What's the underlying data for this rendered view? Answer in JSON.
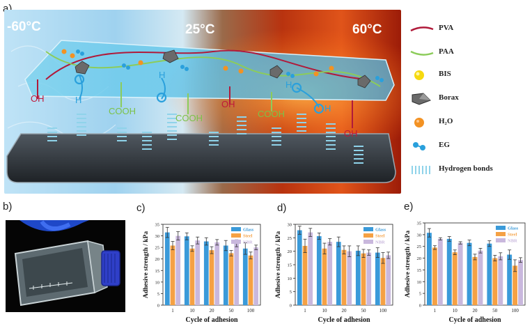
{
  "panels": {
    "a": "a)",
    "b": "b)",
    "c": "c)",
    "d": "d)",
    "e": "e)"
  },
  "schematic": {
    "temp_cold": "-60°C",
    "temp_room": "25°C",
    "temp_hot": "60°C",
    "groups": {
      "oh": "OH",
      "cooh": "COOH",
      "h": "H",
      "o": "O"
    }
  },
  "legend": [
    {
      "label": "PVA",
      "icon": "red-line-icon",
      "color": "#b01a3a"
    },
    {
      "label": "PAA",
      "icon": "green-line-icon",
      "color": "#8ccc5a"
    },
    {
      "label": "BIS",
      "icon": "yellow-sphere-icon",
      "color": "#f6d90f"
    },
    {
      "label": "Borax",
      "icon": "borax-crystal-icon",
      "color": "#6a6a6a"
    },
    {
      "label": "H₂O",
      "icon": "orange-sphere-icon",
      "color": "#f39223"
    },
    {
      "label": "EG",
      "icon": "eg-molecule-icon",
      "color": "#2aa0dc"
    },
    {
      "label": "Hydrogen bonds",
      "icon": "hydrogen-bond-icon",
      "color": "#8fd3ea"
    }
  ],
  "colors": {
    "glass": "#3a9ad9",
    "steel": "#f5a144",
    "nbr": "#c9b8dd"
  },
  "chart_data": [
    {
      "id": "c",
      "type": "bar",
      "categories": [
        "1",
        "10",
        "20",
        "50",
        "100"
      ],
      "series": [
        {
          "name": "Glass",
          "values": [
            31.5,
            29.8,
            27.6,
            25.8,
            24.5
          ],
          "errors": [
            2.2,
            1.5,
            1.6,
            2.2,
            2.5
          ]
        },
        {
          "name": "Steel",
          "values": [
            25.8,
            24.5,
            23.8,
            22.5,
            21.5
          ],
          "errors": [
            1.8,
            1.2,
            1.5,
            1.2,
            1.5
          ]
        },
        {
          "name": "NBR",
          "values": [
            30.0,
            28.0,
            27.2,
            26.8,
            25.0
          ],
          "errors": [
            1.8,
            1.5,
            1.2,
            1.5,
            1.0
          ]
        }
      ],
      "ylim": [
        0,
        35
      ],
      "yticks": [
        0,
        5,
        10,
        15,
        20,
        25,
        30,
        35
      ],
      "xlabel": "Cycle of adhesion",
      "ylabel": "Adhesive strength / kPa"
    },
    {
      "id": "d",
      "type": "bar",
      "categories": [
        "1",
        "10",
        "20",
        "50",
        "100"
      ],
      "series": [
        {
          "name": "Glass",
          "values": [
            27.8,
            25.6,
            23.5,
            20.2,
            19.5
          ],
          "errors": [
            1.5,
            1.2,
            1.8,
            1.8,
            1.8
          ]
        },
        {
          "name": "Steel",
          "values": [
            22.0,
            21.0,
            20.5,
            19.2,
            17.5
          ],
          "errors": [
            2.5,
            2.0,
            1.5,
            1.5,
            2.0
          ]
        },
        {
          "name": "NBR",
          "values": [
            27.0,
            23.5,
            20.0,
            19.5,
            18.5
          ],
          "errors": [
            1.5,
            1.2,
            2.0,
            1.0,
            1.2
          ]
        }
      ],
      "ylim": [
        0,
        30
      ],
      "yticks": [
        0,
        5,
        10,
        15,
        20,
        25,
        30
      ],
      "xlabel": "Cycle of adhesion",
      "ylabel": "Adhesive strength / kPa"
    },
    {
      "id": "e",
      "type": "bar",
      "categories": [
        "1",
        "10",
        "20",
        "50",
        "100"
      ],
      "series": [
        {
          "name": "Glass",
          "values": [
            30.8,
            28.2,
            26.5,
            26.2,
            21.5
          ],
          "errors": [
            1.8,
            1.0,
            1.2,
            1.2,
            2.0
          ]
        },
        {
          "name": "Steel",
          "values": [
            24.5,
            22.5,
            20.5,
            20.0,
            16.8
          ],
          "errors": [
            0.8,
            1.0,
            1.2,
            1.2,
            2.5
          ]
        },
        {
          "name": "NBR",
          "values": [
            28.2,
            26.5,
            23.2,
            20.8,
            19.2
          ],
          "errors": [
            0.5,
            0.5,
            1.0,
            1.5,
            1.0
          ]
        }
      ],
      "ylim": [
        0,
        35
      ],
      "yticks": [
        0,
        5,
        10,
        15,
        20,
        25,
        30,
        35
      ],
      "xlabel": "Cycle of adhesion",
      "ylabel": "Adhesive strength / kPa"
    }
  ]
}
